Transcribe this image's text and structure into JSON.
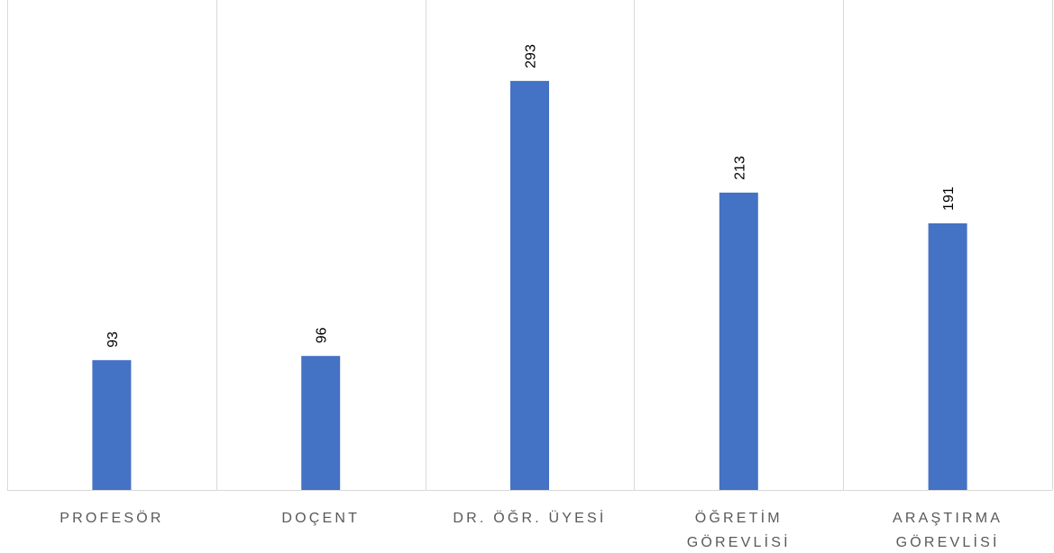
{
  "chart_data": {
    "type": "bar",
    "categories": [
      [
        "PROFESÖR"
      ],
      [
        "DOÇENT"
      ],
      [
        "DR. ÖĞR. ÜYESİ"
      ],
      [
        "ÖĞRETİM",
        "GÖREVLİSİ"
      ],
      [
        "ARAŞTIRMA",
        "GÖREVLİSİ"
      ]
    ],
    "values": [
      93,
      96,
      293,
      213,
      191
    ],
    "title": "",
    "xlabel": "",
    "ylabel": "",
    "ylim": [
      0,
      350
    ],
    "grid": "vertical category separators",
    "legend": "none",
    "data_labels": "rotated, above bars",
    "colors": {
      "bar": "#4472c4",
      "grid": "#d9d9d9",
      "axis": "#d9d9d9",
      "category_text": "#595959",
      "value_text": "#000000"
    }
  }
}
